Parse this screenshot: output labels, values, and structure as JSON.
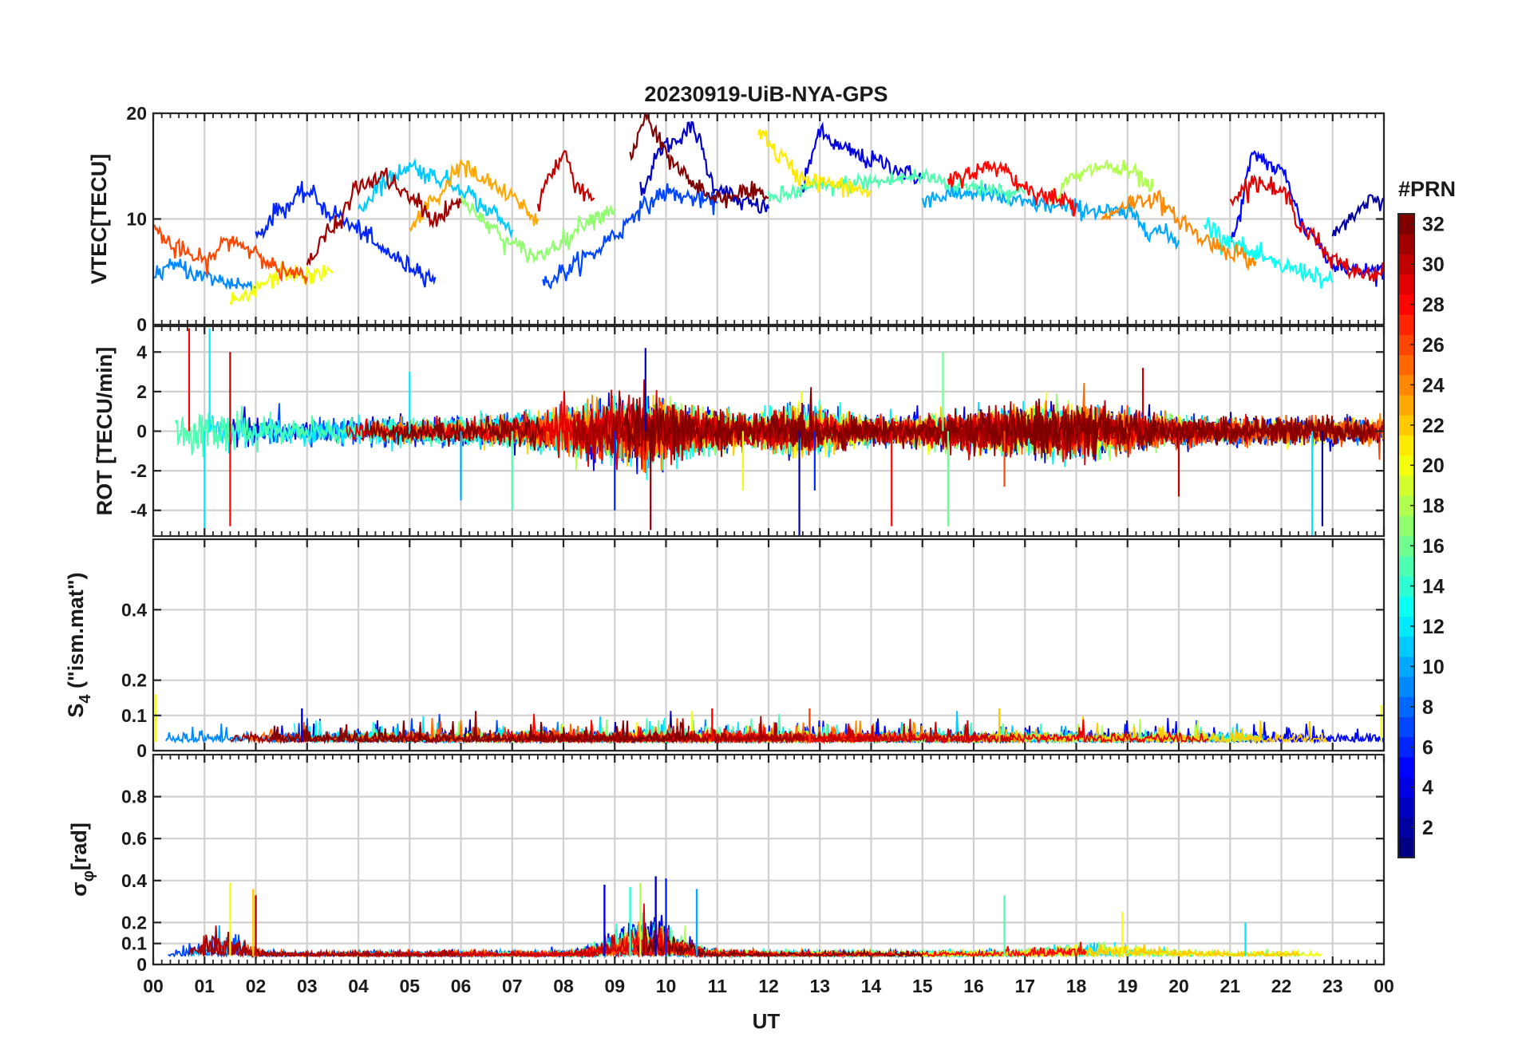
{
  "figure": {
    "title": "20230919-UiB-NYA-GPS",
    "xlabel": "UT",
    "x_ticks": [
      "00",
      "01",
      "02",
      "03",
      "04",
      "05",
      "06",
      "07",
      "08",
      "09",
      "10",
      "11",
      "12",
      "13",
      "14",
      "15",
      "16",
      "17",
      "18",
      "19",
      "20",
      "21",
      "22",
      "23",
      "00"
    ]
  },
  "colorbar": {
    "title": "#PRN",
    "min": 1,
    "max": 32,
    "ticks": [
      2,
      4,
      6,
      8,
      10,
      12,
      14,
      16,
      18,
      20,
      22,
      24,
      26,
      28,
      30,
      32
    ],
    "colormap": "jet"
  },
  "chart_data": [
    {
      "type": "line",
      "id": "vtec",
      "ylabel": "VTEC[TECU]",
      "xlim": [
        0,
        24
      ],
      "ylim": [
        0,
        20
      ],
      "y_ticks": [
        0,
        10,
        20
      ],
      "grid": true,
      "x_unit": "hours UT",
      "color_by": "PRN",
      "series": [
        {
          "prn": 2,
          "x": [
            23.0,
            23.4,
            23.8,
            24.0
          ],
          "y": [
            8.5,
            10.5,
            11.8,
            12.0
          ]
        },
        {
          "prn": 3,
          "x": [
            9.5,
            10.0,
            10.5,
            11.0,
            11.5,
            12.0
          ],
          "y": [
            13.0,
            17.0,
            18.5,
            13.0,
            11.5,
            11.0
          ]
        },
        {
          "prn": 4,
          "x": [
            12.6,
            13.0,
            13.5,
            14.0,
            15.0
          ],
          "y": [
            12.5,
            18.0,
            16.5,
            15.5,
            14.0
          ]
        },
        {
          "prn": 5,
          "x": [
            21.0,
            21.5,
            22.0,
            22.5,
            23.0,
            23.5,
            24.0
          ],
          "y": [
            8.0,
            16.0,
            14.5,
            9.0,
            6.0,
            5.0,
            5.2
          ]
        },
        {
          "prn": 6,
          "x": [
            2.0,
            2.5,
            3.0,
            3.5,
            4.0,
            4.5,
            5.0,
            5.5
          ],
          "y": [
            8.5,
            11.0,
            12.5,
            10.5,
            9.0,
            7.0,
            5.5,
            4.5
          ]
        },
        {
          "prn": 7,
          "x": [
            7.6,
            8.0,
            8.5,
            9.0,
            9.5,
            10.0,
            10.5,
            11.0
          ],
          "y": [
            3.8,
            5.0,
            6.5,
            8.5,
            11.0,
            12.5,
            12.0,
            11.5
          ]
        },
        {
          "prn": 9,
          "x": [
            0.0,
            0.5,
            1.0,
            1.5,
            2.0
          ],
          "y": [
            5.0,
            5.5,
            4.5,
            4.0,
            3.5
          ]
        },
        {
          "prn": 10,
          "x": [
            15.0,
            16.0,
            17.0,
            18.0,
            19.0,
            19.5,
            20.0
          ],
          "y": [
            12.0,
            12.5,
            11.5,
            11.0,
            10.5,
            9.0,
            8.0
          ]
        },
        {
          "prn": 11,
          "x": [
            4.0,
            4.5,
            5.0,
            5.5,
            6.0,
            6.5,
            7.0
          ],
          "y": [
            11.0,
            13.5,
            15.0,
            14.0,
            13.0,
            11.0,
            9.0
          ]
        },
        {
          "prn": 13,
          "x": [
            20.5,
            21.0,
            21.5,
            22.0,
            22.5,
            23.0
          ],
          "y": [
            9.5,
            8.0,
            6.5,
            5.5,
            5.0,
            4.0
          ]
        },
        {
          "prn": 15,
          "x": [
            12.0,
            13.0,
            14.0,
            15.0,
            16.0,
            17.0
          ],
          "y": [
            12.0,
            13.0,
            13.5,
            14.0,
            13.0,
            12.5
          ]
        },
        {
          "prn": 17,
          "x": [
            6.0,
            6.5,
            7.0,
            7.5,
            8.0,
            8.5,
            9.0
          ],
          "y": [
            12.0,
            9.5,
            7.5,
            6.5,
            8.0,
            10.0,
            11.0
          ]
        },
        {
          "prn": 18,
          "x": [
            17.5,
            18.0,
            18.5,
            19.0,
            19.5
          ],
          "y": [
            12.0,
            14.0,
            15.0,
            14.5,
            13.0
          ]
        },
        {
          "prn": 20,
          "x": [
            1.5,
            1.8,
            2.2,
            2.6,
            3.0,
            3.5
          ],
          "y": [
            2.0,
            2.5,
            4.0,
            5.0,
            4.5,
            5.0
          ]
        },
        {
          "prn": 21,
          "x": [
            11.8,
            12.2,
            12.6,
            13.0,
            13.5,
            14.0
          ],
          "y": [
            18.5,
            16.0,
            14.0,
            13.5,
            13.0,
            12.5
          ]
        },
        {
          "prn": 23,
          "x": [
            5.0,
            5.5,
            6.0,
            6.5,
            7.0,
            7.5
          ],
          "y": [
            9.0,
            12.0,
            15.0,
            13.5,
            12.0,
            10.0
          ]
        },
        {
          "prn": 24,
          "x": [
            18.5,
            19.0,
            19.5,
            20.0,
            20.5,
            21.0,
            21.5
          ],
          "y": [
            10.0,
            11.5,
            12.0,
            10.0,
            8.0,
            7.0,
            6.0
          ]
        },
        {
          "prn": 26,
          "x": [
            0.0,
            0.5,
            1.0,
            1.5,
            2.0,
            2.5,
            3.0
          ],
          "y": [
            9.0,
            7.0,
            6.0,
            8.0,
            7.0,
            5.0,
            4.5
          ]
        },
        {
          "prn": 28,
          "x": [
            15.5,
            16.0,
            16.5,
            17.0,
            17.5,
            18.0
          ],
          "y": [
            13.5,
            14.5,
            15.0,
            13.0,
            12.0,
            11.5
          ]
        },
        {
          "prn": 29,
          "x": [
            21.0,
            21.5,
            22.0,
            22.5,
            23.0,
            23.5,
            24.0
          ],
          "y": [
            12.0,
            13.5,
            12.5,
            9.0,
            6.0,
            5.0,
            4.8
          ]
        },
        {
          "prn": 30,
          "x": [
            7.5,
            7.8,
            8.0,
            8.3,
            8.6
          ],
          "y": [
            12.0,
            14.5,
            16.0,
            13.0,
            12.0
          ]
        },
        {
          "prn": 31,
          "x": [
            3.0,
            3.5,
            4.0,
            4.5,
            5.0,
            5.5,
            6.0
          ],
          "y": [
            6.0,
            9.0,
            13.0,
            14.0,
            12.0,
            10.0,
            11.5
          ]
        },
        {
          "prn": 32,
          "x": [
            9.3,
            9.6,
            9.9,
            10.2,
            10.6,
            11.0,
            11.5,
            12.0
          ],
          "y": [
            16.0,
            19.5,
            17.0,
            15.0,
            13.0,
            12.0,
            12.5,
            12.0
          ]
        }
      ]
    },
    {
      "type": "line",
      "id": "rot",
      "ylabel": "ROT [TECU/min]",
      "xlim": [
        0,
        24
      ],
      "ylim": [
        -5.3,
        5.3
      ],
      "y_ticks": [
        -4,
        -2,
        0,
        2,
        4
      ],
      "grid": true,
      "color_by": "PRN",
      "description_values": {
        "baseline": 0,
        "typical_amplitude": 1.5,
        "spikes": [
          {
            "x": 0.7,
            "y": 5.2,
            "prn": 28
          },
          {
            "x": 1.1,
            "y": 5.2,
            "prn": 12
          },
          {
            "x": 1.0,
            "y": -4.9,
            "prn": 12
          },
          {
            "x": 1.5,
            "y": -4.8,
            "prn": 28
          },
          {
            "x": 1.5,
            "y": 4.0,
            "prn": 30
          },
          {
            "x": 5.0,
            "y": 3.0,
            "prn": 12
          },
          {
            "x": 6.0,
            "y": -3.5,
            "prn": 10
          },
          {
            "x": 7.0,
            "y": -4.0,
            "prn": 15
          },
          {
            "x": 9.0,
            "y": -4.0,
            "prn": 6
          },
          {
            "x": 9.6,
            "y": 4.2,
            "prn": 3
          },
          {
            "x": 9.7,
            "y": -5.0,
            "prn": 32
          },
          {
            "x": 11.5,
            "y": -3.0,
            "prn": 20
          },
          {
            "x": 12.6,
            "y": -5.3,
            "prn": 2
          },
          {
            "x": 12.9,
            "y": -3.0,
            "prn": 6
          },
          {
            "x": 14.4,
            "y": -4.8,
            "prn": 28
          },
          {
            "x": 15.4,
            "y": 4.0,
            "prn": 16
          },
          {
            "x": 15.5,
            "y": -4.8,
            "prn": 16
          },
          {
            "x": 16.6,
            "y": -2.8,
            "prn": 26
          },
          {
            "x": 19.3,
            "y": 3.2,
            "prn": 30
          },
          {
            "x": 20.0,
            "y": -3.3,
            "prn": 30
          },
          {
            "x": 22.6,
            "y": -5.3,
            "prn": 12
          },
          {
            "x": 22.8,
            "y": -4.8,
            "prn": 2
          }
        ]
      }
    },
    {
      "type": "line",
      "id": "s4",
      "ylabel_main": "S",
      "ylabel_sub": "4",
      "ylabel_rest": " (\"ism.mat\")",
      "xlim": [
        0,
        24
      ],
      "ylim": [
        0,
        0.6
      ],
      "y_ticks": [
        0,
        0.1,
        0.2,
        0.4
      ],
      "grid": true,
      "color_by": "PRN",
      "description_values": {
        "baseline": 0.025,
        "typical_max": 0.08,
        "spikes": [
          {
            "x": 0.05,
            "y": 0.16,
            "prn": 20
          },
          {
            "x": 2.9,
            "y": 0.12,
            "prn": 4
          },
          {
            "x": 10.9,
            "y": 0.12,
            "prn": 28
          },
          {
            "x": 12.8,
            "y": 0.12,
            "prn": 26
          },
          {
            "x": 16.5,
            "y": 0.12,
            "prn": 22
          },
          {
            "x": 23.95,
            "y": 0.13,
            "prn": 20
          }
        ]
      }
    },
    {
      "type": "line",
      "id": "sigma_phi",
      "ylabel_main": "σ",
      "ylabel_sub": "φ",
      "ylabel_rest": "[rad]",
      "xlim": [
        0,
        24
      ],
      "ylim": [
        0,
        1.0
      ],
      "y_ticks": [
        0,
        0.1,
        0.2,
        0.4,
        0.6,
        0.8
      ],
      "grid": true,
      "color_by": "PRN",
      "description_values": {
        "baseline": 0.04,
        "spikes": [
          {
            "x": 1.5,
            "y": 0.39,
            "prn": 20
          },
          {
            "x": 1.95,
            "y": 0.36,
            "prn": 22
          },
          {
            "x": 2.0,
            "y": 0.33,
            "prn": 30
          },
          {
            "x": 8.8,
            "y": 0.38,
            "prn": 4
          },
          {
            "x": 9.3,
            "y": 0.37,
            "prn": 14
          },
          {
            "x": 9.5,
            "y": 0.39,
            "prn": 18
          },
          {
            "x": 9.8,
            "y": 0.42,
            "prn": 3
          },
          {
            "x": 10.0,
            "y": 0.41,
            "prn": 6
          },
          {
            "x": 10.6,
            "y": 0.36,
            "prn": 10
          },
          {
            "x": 16.6,
            "y": 0.33,
            "prn": 15
          },
          {
            "x": 18.9,
            "y": 0.25,
            "prn": 20
          },
          {
            "x": 21.3,
            "y": 0.2,
            "prn": 12
          }
        ]
      }
    }
  ]
}
